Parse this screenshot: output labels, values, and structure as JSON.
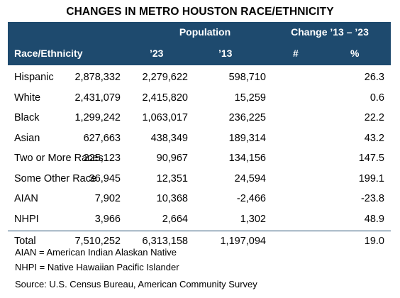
{
  "title": "CHANGES IN METRO HOUSTON RACE/ETHNICITY",
  "header": {
    "group_population": "Population",
    "group_change": "Change ’13 – ’23",
    "col_race": "Race/Ethnicity",
    "col_23": "’23",
    "col_13": "’13",
    "col_num": "#",
    "col_pct": "%"
  },
  "colors": {
    "header_bg": "#1e4a6e",
    "header_text": "#ffffff"
  },
  "chart_data": {
    "type": "table",
    "title": "CHANGES IN METRO HOUSTON RACE/ETHNICITY",
    "columns": [
      "Race/Ethnicity",
      "’23",
      "’13",
      "#",
      "%"
    ],
    "rows": [
      [
        "Hispanic",
        "2,878,332",
        "2,279,622",
        "598,710",
        "26.3"
      ],
      [
        "White",
        "2,431,079",
        "2,415,820",
        "15,259",
        "0.6"
      ],
      [
        "Black",
        "1,299,242",
        "1,063,017",
        "236,225",
        "22.2"
      ],
      [
        "Asian",
        "627,663",
        "438,349",
        "189,314",
        "43.2"
      ],
      [
        "Two or More Races",
        "225,123",
        "90,967",
        "134,156",
        "147.5"
      ],
      [
        "Some Other Race",
        "36,945",
        "12,351",
        "24,594",
        "199.1"
      ],
      [
        "AIAN",
        "7,902",
        "10,368",
        "-2,466",
        "-23.8"
      ],
      [
        "NHPI",
        "3,966",
        "2,664",
        "1,302",
        "48.9"
      ]
    ],
    "total": [
      "Total",
      "7,510,252",
      "6,313,158",
      "1,197,094",
      "19.0"
    ]
  },
  "notes": [
    "AIAN = American Indian Alaskan Native",
    "NHPI = Native Hawaiian Pacific Islander"
  ],
  "source": "Source: U.S. Census Bureau, American Community Survey"
}
